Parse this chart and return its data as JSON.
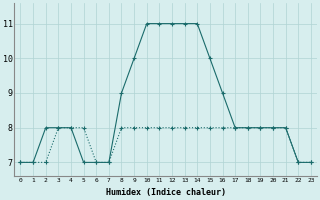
{
  "xlabel": "Humidex (Indice chaleur)",
  "background_color": "#d7eeee",
  "line_color": "#1a6b6b",
  "grid_color": "#b0d4d4",
  "xlim": [
    -0.5,
    23.5
  ],
  "ylim": [
    6.6,
    11.6
  ],
  "yticks": [
    7,
    8,
    9,
    10,
    11
  ],
  "xticks": [
    0,
    1,
    2,
    3,
    4,
    5,
    6,
    7,
    8,
    9,
    10,
    11,
    12,
    13,
    14,
    15,
    16,
    17,
    18,
    19,
    20,
    21,
    22,
    23
  ],
  "series1_x": [
    0,
    1,
    2,
    3,
    4,
    5,
    6,
    7,
    8,
    9,
    10,
    11,
    12,
    13,
    14,
    15,
    16,
    17,
    18,
    19,
    20,
    21,
    22,
    23
  ],
  "series1_y": [
    7,
    7,
    8,
    8,
    8,
    7,
    7,
    7,
    9,
    10,
    11,
    11,
    11,
    11,
    11,
    10,
    9,
    8,
    8,
    8,
    8,
    8,
    7,
    7
  ],
  "series2_x": [
    0,
    1,
    2,
    3,
    4,
    5,
    6,
    7,
    8,
    9,
    10,
    11,
    12,
    13,
    14,
    15,
    16,
    17,
    18,
    19,
    20,
    21,
    22,
    23
  ],
  "series2_y": [
    7,
    7,
    7,
    8,
    8,
    8,
    7,
    7,
    8,
    8,
    8,
    8,
    8,
    8,
    8,
    8,
    8,
    8,
    8,
    8,
    8,
    8,
    7,
    7
  ]
}
